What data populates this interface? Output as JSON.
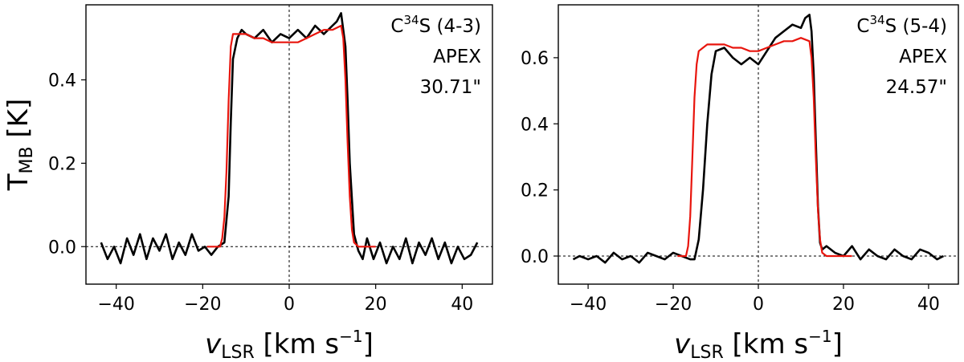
{
  "chart_data": [
    {
      "type": "line",
      "xlabel": {
        "main": "v",
        "sub": "LSR",
        "unit": "[km s",
        "sup": "−1",
        "close": "]"
      },
      "ylabel": {
        "main": "T",
        "sub": "MB",
        "unit": "[K]"
      },
      "xlim": [
        -47,
        47
      ],
      "ylim": [
        -0.09,
        0.58
      ],
      "xticks": [
        -40,
        -20,
        0,
        20,
        40
      ],
      "xtick_labels": [
        "−40",
        "−20",
        "0",
        "20",
        "40"
      ],
      "yticks": [
        0.0,
        0.2,
        0.4
      ],
      "ytick_labels": [
        "0.0",
        "0.2",
        "0.4"
      ],
      "annotation": {
        "mol_prefix": "C",
        "mol_sup": "34",
        "mol_rest": "S (4-3)",
        "telescope": "APEX",
        "beam": "30.71\""
      },
      "reference_lines": {
        "hline_y": 0,
        "vline_x": 0,
        "style": "dotted"
      },
      "series": [
        {
          "color": "#000000",
          "x": [
            -43.5,
            -42,
            -40.5,
            -39,
            -37.5,
            -36,
            -34.5,
            -33,
            -31.5,
            -30,
            -28.5,
            -27,
            -25.5,
            -24,
            -22.5,
            -21,
            -19.5,
            -18,
            -16.5,
            -15,
            -14,
            -13.5,
            -13,
            -12,
            -11,
            -10,
            -8,
            -6,
            -4,
            -2,
            0,
            2,
            4,
            6,
            8,
            10,
            11,
            12,
            13,
            13.5,
            14,
            15,
            16,
            17,
            18,
            19.5,
            21,
            22.5,
            24,
            25.5,
            27,
            28.5,
            30,
            31.5,
            33,
            34.5,
            36,
            37.5,
            39,
            40.5,
            42,
            43.5
          ],
          "values": [
            0.01,
            -0.03,
            0.0,
            -0.04,
            0.02,
            -0.02,
            0.03,
            -0.03,
            0.02,
            -0.01,
            0.03,
            -0.03,
            0.01,
            -0.02,
            0.03,
            -0.01,
            0.0,
            -0.02,
            0.0,
            0.01,
            0.12,
            0.3,
            0.45,
            0.5,
            0.52,
            0.51,
            0.5,
            0.52,
            0.49,
            0.51,
            0.5,
            0.52,
            0.5,
            0.53,
            0.51,
            0.53,
            0.54,
            0.56,
            0.48,
            0.35,
            0.2,
            0.03,
            -0.01,
            -0.03,
            0.02,
            -0.03,
            0.01,
            -0.04,
            0.0,
            -0.03,
            0.02,
            -0.04,
            0.01,
            -0.02,
            0.02,
            -0.03,
            0.01,
            -0.04,
            0.0,
            -0.03,
            -0.02,
            0.01
          ]
        },
        {
          "color": "#e8150d",
          "x": [
            -19,
            -16,
            -15.5,
            -15,
            -14.5,
            -14,
            -13.5,
            -13,
            -12,
            -10,
            -8,
            -6,
            -4,
            -2,
            0,
            2,
            4,
            6,
            8,
            10,
            12,
            12.5,
            13,
            13.5,
            14,
            14.5,
            15,
            16,
            18,
            20
          ],
          "values": [
            0.0,
            0.0,
            0.02,
            0.07,
            0.18,
            0.35,
            0.48,
            0.51,
            0.51,
            0.51,
            0.5,
            0.5,
            0.49,
            0.49,
            0.49,
            0.49,
            0.5,
            0.51,
            0.52,
            0.52,
            0.53,
            0.5,
            0.4,
            0.25,
            0.12,
            0.04,
            0.01,
            0.0,
            0.0,
            0.0
          ]
        }
      ]
    },
    {
      "type": "line",
      "xlabel": {
        "main": "v",
        "sub": "LSR",
        "unit": "[km s",
        "sup": "−1",
        "close": "]"
      },
      "ylabel": {
        "main": "",
        "sub": "",
        "unit": ""
      },
      "xlim": [
        -47,
        47
      ],
      "ylim": [
        -0.085,
        0.76
      ],
      "xticks": [
        -40,
        -20,
        0,
        20,
        40
      ],
      "xtick_labels": [
        "−40",
        "−20",
        "0",
        "20",
        "40"
      ],
      "yticks": [
        0.0,
        0.2,
        0.4,
        0.6
      ],
      "ytick_labels": [
        "0.0",
        "0.2",
        "0.4",
        "0.6"
      ],
      "annotation": {
        "mol_prefix": "C",
        "mol_sup": "34",
        "mol_rest": "S (5-4)",
        "telescope": "APEX",
        "beam": "24.57\""
      },
      "reference_lines": {
        "hline_y": 0,
        "vline_x": 0,
        "style": "dotted"
      },
      "series": [
        {
          "color": "#000000",
          "x": [
            -43.5,
            -42,
            -40,
            -38,
            -36,
            -34,
            -32,
            -30,
            -28,
            -26,
            -24,
            -22,
            -20,
            -18,
            -16,
            -15,
            -14,
            -13,
            -12,
            -11,
            -10,
            -8,
            -6,
            -4,
            -2,
            0,
            2,
            4,
            6,
            8,
            10,
            11,
            12,
            12.5,
            13,
            13.5,
            14,
            14.5,
            15,
            16,
            18,
            20,
            22,
            24,
            26,
            28,
            30,
            32,
            34,
            36,
            38,
            40,
            42,
            43.5
          ],
          "values": [
            -0.01,
            0.0,
            -0.01,
            0.0,
            -0.02,
            0.01,
            -0.01,
            0.0,
            -0.02,
            0.01,
            0.0,
            -0.01,
            0.01,
            0.0,
            -0.01,
            -0.01,
            0.05,
            0.2,
            0.4,
            0.55,
            0.62,
            0.63,
            0.6,
            0.58,
            0.6,
            0.58,
            0.62,
            0.66,
            0.68,
            0.7,
            0.69,
            0.72,
            0.73,
            0.68,
            0.55,
            0.35,
            0.15,
            0.04,
            0.02,
            0.03,
            0.01,
            0.0,
            0.03,
            -0.01,
            0.02,
            0.0,
            -0.01,
            0.02,
            0.0,
            -0.01,
            0.02,
            0.01,
            -0.01,
            0.0
          ]
        },
        {
          "color": "#e8150d",
          "x": [
            -19,
            -17,
            -16.5,
            -16,
            -15.5,
            -15,
            -14.5,
            -14,
            -13,
            -12,
            -10,
            -8,
            -6,
            -4,
            -2,
            0,
            2,
            4,
            6,
            8,
            10,
            12,
            12.5,
            13,
            13.5,
            14,
            14.5,
            15,
            16,
            18,
            20,
            22
          ],
          "values": [
            0.0,
            0.0,
            0.03,
            0.12,
            0.3,
            0.48,
            0.58,
            0.62,
            0.63,
            0.64,
            0.64,
            0.64,
            0.63,
            0.63,
            0.62,
            0.62,
            0.63,
            0.64,
            0.65,
            0.65,
            0.66,
            0.65,
            0.6,
            0.48,
            0.3,
            0.14,
            0.05,
            0.01,
            0.0,
            0.0,
            0.0,
            0.0
          ]
        }
      ]
    }
  ]
}
